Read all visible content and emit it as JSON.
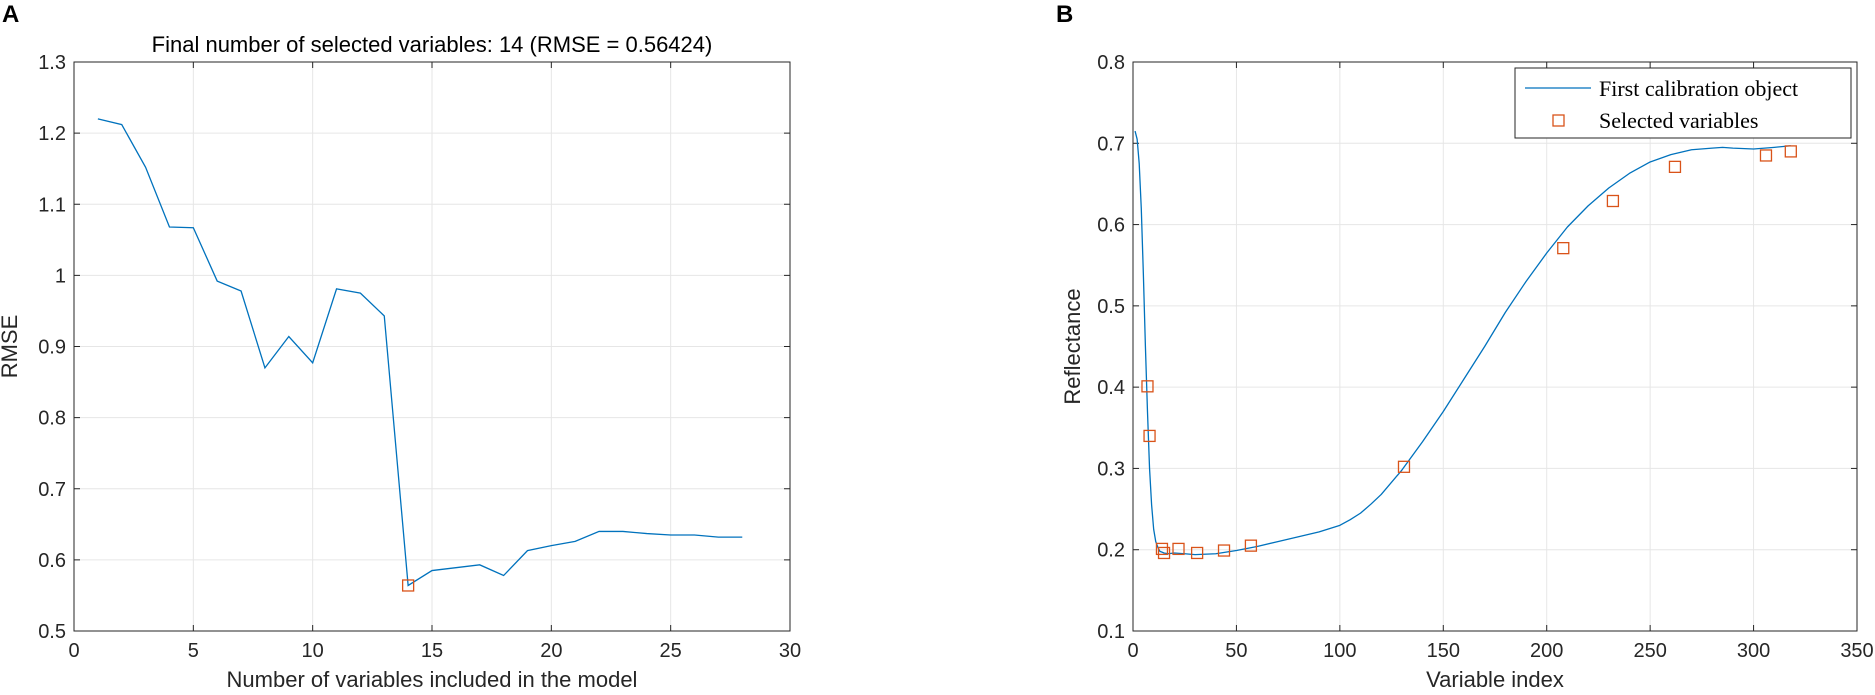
{
  "colors": {
    "line": "#0072BD",
    "marker": "#D95319",
    "grid": "#e6e6e6",
    "axis": "#262626"
  },
  "chart_data": [
    {
      "panel": "A",
      "type": "line",
      "title": "Final number of selected variables: 14  (RMSE = 0.56424)",
      "xlabel": "Number of variables included in the model",
      "ylabel": "RMSE",
      "xlim": [
        0,
        30
      ],
      "ylim": [
        0.5,
        1.3
      ],
      "xticks": [
        0,
        5,
        10,
        15,
        20,
        25,
        30
      ],
      "yticks": [
        0.5,
        0.6,
        0.7,
        0.8,
        0.9,
        1,
        1.1,
        1.2,
        1.3
      ],
      "xtick_labels": [
        "0",
        "5",
        "10",
        "15",
        "20",
        "25",
        "30"
      ],
      "ytick_labels": [
        "0.5",
        "0.6",
        "0.7",
        "0.8",
        "0.9",
        "1",
        "1.1",
        "1.2",
        "1.3"
      ],
      "grid": true,
      "series": [
        {
          "name": "RMSE",
          "x": [
            1,
            2,
            3,
            4,
            5,
            6,
            7,
            8,
            9,
            10,
            11,
            12,
            13,
            14,
            15,
            16,
            17,
            18,
            19,
            20,
            21,
            22,
            23,
            24,
            25,
            26,
            27,
            28
          ],
          "y": [
            1.22,
            1.212,
            1.152,
            1.068,
            1.067,
            0.992,
            0.978,
            0.87,
            0.914,
            0.877,
            0.981,
            0.975,
            0.943,
            0.564,
            0.585,
            0.589,
            0.593,
            0.578,
            0.613,
            0.62,
            0.626,
            0.64,
            0.64,
            0.637,
            0.635,
            0.635,
            0.632,
            0.632
          ]
        }
      ],
      "highlight": {
        "x": 14,
        "y": 0.564
      }
    },
    {
      "panel": "B",
      "type": "line",
      "title": "",
      "xlabel": "Variable index",
      "ylabel": "Reflectance",
      "xlim": [
        0,
        350
      ],
      "ylim": [
        0.1,
        0.8
      ],
      "xticks": [
        0,
        50,
        100,
        150,
        200,
        250,
        300,
        350
      ],
      "yticks": [
        0.1,
        0.2,
        0.3,
        0.4,
        0.5,
        0.6,
        0.7,
        0.8
      ],
      "xtick_labels": [
        "0",
        "50",
        "100",
        "150",
        "200",
        "250",
        "300",
        "350"
      ],
      "ytick_labels": [
        "0.1",
        "0.2",
        "0.3",
        "0.4",
        "0.5",
        "0.6",
        "0.7",
        "0.8"
      ],
      "grid": true,
      "legend_position": "top-right",
      "legend": [
        "First calibration object",
        "Selected variables"
      ],
      "series": [
        {
          "name": "First calibration object",
          "x": [
            1,
            2,
            3,
            4,
            5,
            6,
            7,
            8,
            9,
            10,
            11,
            12,
            13,
            14,
            15,
            17,
            20,
            25,
            30,
            40,
            50,
            60,
            70,
            80,
            90,
            95,
            100,
            105,
            110,
            115,
            120,
            130,
            140,
            150,
            160,
            170,
            180,
            190,
            200,
            210,
            220,
            230,
            240,
            250,
            260,
            270,
            280,
            285,
            290,
            300,
            310,
            318
          ],
          "y": [
            0.715,
            0.705,
            0.675,
            0.62,
            0.54,
            0.45,
            0.37,
            0.3,
            0.255,
            0.225,
            0.21,
            0.203,
            0.198,
            0.197,
            0.196,
            0.195,
            0.196,
            0.195,
            0.194,
            0.195,
            0.199,
            0.204,
            0.21,
            0.216,
            0.222,
            0.226,
            0.23,
            0.237,
            0.245,
            0.256,
            0.268,
            0.298,
            0.333,
            0.37,
            0.41,
            0.45,
            0.492,
            0.53,
            0.565,
            0.597,
            0.623,
            0.645,
            0.663,
            0.677,
            0.686,
            0.692,
            0.694,
            0.695,
            0.694,
            0.693,
            0.695,
            0.697
          ]
        },
        {
          "name": "Selected variables",
          "x": [
            7,
            8,
            14,
            15,
            22,
            31,
            44,
            57,
            131,
            208,
            232,
            262,
            306,
            318
          ],
          "y": [
            0.401,
            0.34,
            0.201,
            0.196,
            0.201,
            0.196,
            0.199,
            0.205,
            0.302,
            0.571,
            0.629,
            0.671,
            0.685,
            0.69
          ]
        }
      ]
    }
  ]
}
